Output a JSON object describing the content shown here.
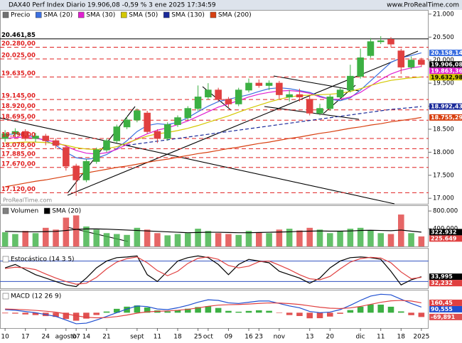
{
  "header": {
    "title": "DAX40 Perf Index Diario 19.906,08 -0,59 % 3 ene 2025 17:34:59",
    "site": "www.ProRealTime.com",
    "watermark": "ProRealTime.com"
  },
  "chart_data": [
    {
      "type": "candlestick",
      "name": "Precio",
      "color": "#707070",
      "up_color": "#3cb043",
      "down_color": "#e04040",
      "categories": [
        "10",
        null,
        "17",
        null,
        "24",
        null,
        "agosto",
        "07",
        "14",
        null,
        "21",
        null,
        null,
        "sept",
        null,
        "11",
        null,
        "18",
        null,
        "25",
        "oct",
        null,
        "09",
        null,
        "16",
        "23",
        null,
        "nov",
        null,
        null,
        "13",
        null,
        "20",
        null,
        null,
        "dic",
        null,
        "11",
        null,
        "18",
        null,
        "2025"
      ],
      "open": [
        18300,
        18400,
        18450,
        18300,
        18350,
        18250,
        18100,
        17700,
        17400,
        17800,
        18050,
        18250,
        18550,
        18700,
        18850,
        18450,
        18300,
        18600,
        18750,
        18950,
        19200,
        19350,
        19150,
        19050,
        19350,
        19500,
        19450,
        19500,
        19200,
        19250,
        19150,
        18850,
        18950,
        19200,
        19350,
        19650,
        20100,
        20400,
        20450,
        20200,
        19850,
        20000
      ],
      "high": [
        18480,
        18520,
        18500,
        18420,
        18400,
        18300,
        18150,
        17750,
        17850,
        18100,
        18300,
        18600,
        18780,
        18950,
        18900,
        18500,
        18650,
        18800,
        19000,
        19450,
        19500,
        19400,
        19200,
        19400,
        19600,
        19580,
        19560,
        19550,
        19350,
        19380,
        19250,
        19050,
        19250,
        19400,
        19900,
        20250,
        20480,
        20520,
        20500,
        20250,
        20080,
        20050
      ],
      "low": [
        18230,
        18330,
        18250,
        18220,
        18150,
        18080,
        17600,
        17050,
        17350,
        17750,
        18000,
        18200,
        18500,
        18650,
        18400,
        18200,
        18250,
        18550,
        18700,
        18900,
        19150,
        19100,
        18980,
        19000,
        19300,
        19400,
        19350,
        19150,
        19100,
        19100,
        18800,
        18800,
        18900,
        19150,
        19300,
        19600,
        20050,
        20350,
        20280,
        19700,
        19800,
        19850
      ],
      "close": [
        18400,
        18450,
        18300,
        18350,
        18250,
        18150,
        17700,
        17400,
        17800,
        18050,
        18250,
        18550,
        18700,
        18900,
        18450,
        18300,
        18600,
        18750,
        18950,
        19200,
        19350,
        19150,
        19050,
        19350,
        19500,
        19450,
        19500,
        19250,
        19250,
        19200,
        18850,
        18950,
        19200,
        19350,
        19650,
        20050,
        20400,
        20420,
        20350,
        19850,
        20000,
        19906.08
      ],
      "last_label": "19.906,08",
      "ylim": [
        16880,
        21090
      ],
      "yticks": [
        {
          "value": 21000,
          "label": "21.000"
        },
        {
          "value": 20500,
          "label": "20.500"
        },
        {
          "value": 20000,
          "label": "20.000"
        },
        {
          "value": 19500,
          "label": "19.500"
        },
        {
          "value": 19000,
          "label": "19.000"
        },
        {
          "value": 18500,
          "label": "18.500"
        },
        {
          "value": 18000,
          "label": "18.000"
        },
        {
          "value": 17500,
          "label": "17.500"
        },
        {
          "value": 17000,
          "label": "17.000"
        }
      ],
      "levels": [
        {
          "value": 20461.85,
          "label": "20.461,85",
          "color": "#000000"
        },
        {
          "value": 20280,
          "label": "20.280,00",
          "color": "#e02020"
        },
        {
          "value": 20025,
          "label": "20.025,00",
          "color": "#e02020"
        },
        {
          "value": 19635,
          "label": "19.635,00",
          "color": "#e02020"
        },
        {
          "value": 19145,
          "label": "19.145,00",
          "color": "#e02020"
        },
        {
          "value": 18920,
          "label": "18.920,00",
          "color": "#e02020"
        },
        {
          "value": 18695,
          "label": "18.695,00",
          "color": "#e02020"
        },
        {
          "value": 18298,
          "label": "18.298,00",
          "color": "#e02020"
        },
        {
          "value": 18078,
          "label": "18.078,00",
          "color": "#e02020"
        },
        {
          "value": 17885,
          "label": "17.885,00",
          "color": "#e02020"
        },
        {
          "value": 17670,
          "label": "17.670,00",
          "color": "#e02020"
        },
        {
          "value": 17120,
          "label": "17.120,00",
          "color": "#e02020"
        }
      ],
      "series": [
        {
          "name": "SMA (20)",
          "color": "#3b6fe0",
          "last_label": "20.158,14",
          "values": [
            18380,
            18400,
            18380,
            18320,
            18250,
            18150,
            18000,
            17880,
            17850,
            17870,
            17950,
            18080,
            18250,
            18450,
            18580,
            18620,
            18600,
            18650,
            18750,
            18880,
            19000,
            19100,
            19150,
            19200,
            19250,
            19320,
            19380,
            19400,
            19380,
            19340,
            19300,
            19220,
            19150,
            19120,
            19180,
            19350,
            19550,
            19750,
            19950,
            20050,
            20100,
            20158.14
          ]
        },
        {
          "name": "SMA (30)",
          "color": "#e020d0",
          "last_label": "19.863,36",
          "values": [
            18300,
            18320,
            18330,
            18300,
            18270,
            18220,
            18130,
            18040,
            17980,
            17960,
            17990,
            18060,
            18170,
            18300,
            18400,
            18480,
            18530,
            18600,
            18680,
            18780,
            18880,
            18980,
            19050,
            19120,
            19200,
            19260,
            19300,
            19330,
            19340,
            19320,
            19280,
            19200,
            19150,
            19150,
            19200,
            19300,
            19440,
            19580,
            19700,
            19780,
            19830,
            19863.36
          ]
        },
        {
          "name": "SMA (50)",
          "color": "#d4c800",
          "last_label": "19.632,98",
          "values": [
            18200,
            18210,
            18220,
            18220,
            18210,
            18190,
            18150,
            18100,
            18070,
            18060,
            18080,
            18120,
            18200,
            18280,
            18350,
            18400,
            18430,
            18470,
            18520,
            18580,
            18650,
            18720,
            18790,
            18870,
            18950,
            19020,
            19090,
            19150,
            19200,
            19230,
            19240,
            19250,
            19260,
            19280,
            19320,
            19380,
            19450,
            19510,
            19560,
            19590,
            19615,
            19632.98
          ]
        },
        {
          "name": "SMA (130)",
          "color": "#1a2a9a",
          "style": "dashed",
          "last_label": "18.992,43",
          "values": [
            null,
            null,
            null,
            null,
            null,
            null,
            null,
            null,
            null,
            null,
            null,
            null,
            18150,
            18180,
            18210,
            18240,
            18270,
            18300,
            18330,
            18360,
            18390,
            18420,
            18450,
            18480,
            18510,
            18540,
            18570,
            18600,
            18630,
            18660,
            18690,
            18720,
            18750,
            18780,
            18810,
            18840,
            18870,
            18900,
            18930,
            18950,
            18970,
            18992.43
          ]
        },
        {
          "name": "SMA (200)",
          "color": "#d84010",
          "last_label": "18.755,29",
          "values": [
            17250,
            17290,
            17330,
            17370,
            17400,
            17440,
            17480,
            17520,
            17550,
            17590,
            17630,
            17670,
            17700,
            17740,
            17780,
            17820,
            17850,
            17890,
            17930,
            17970,
            18000,
            18040,
            18080,
            18110,
            18150,
            18190,
            18220,
            18260,
            18300,
            18330,
            18370,
            18410,
            18440,
            18480,
            18520,
            18550,
            18590,
            18620,
            18660,
            18690,
            18720,
            18755.29
          ]
        }
      ]
    },
    {
      "type": "bar",
      "name": "Volumen",
      "color": "#808080",
      "last_label": "225.649",
      "values": [
        320000,
        280000,
        350000,
        300000,
        420000,
        380000,
        650000,
        700000,
        450000,
        380000,
        300000,
        280000,
        260000,
        420000,
        380000,
        300000,
        250000,
        280000,
        300000,
        400000,
        350000,
        300000,
        280000,
        260000,
        350000,
        320000,
        300000,
        380000,
        400000,
        360000,
        420000,
        380000,
        300000,
        350000,
        400000,
        420000,
        360000,
        300000,
        280000,
        720000,
        300000,
        225649
      ],
      "ylim": [
        0,
        914000
      ],
      "yticks": [
        {
          "value": 800000,
          "label": "800.000"
        },
        {
          "value": 400000,
          "label": "400.000"
        }
      ],
      "series": [
        {
          "name": "SMA (20)",
          "color": "#000000",
          "last_label": "322.932",
          "values": [
            340000,
            335000,
            330000,
            330000,
            335000,
            340000,
            360000,
            385000,
            395000,
            395000,
            390000,
            380000,
            370000,
            360000,
            350000,
            340000,
            330000,
            320000,
            310000,
            315000,
            320000,
            320000,
            315000,
            310000,
            310000,
            315000,
            320000,
            325000,
            330000,
            340000,
            345000,
            350000,
            345000,
            345000,
            350000,
            360000,
            365000,
            360000,
            355000,
            370000,
            345000,
            322932
          ]
        }
      ]
    },
    {
      "type": "line",
      "title": "Estocástico (14 3 5)",
      "ylim": [
        0,
        100
      ],
      "levels": [
        80,
        20
      ],
      "level_color": "#3050c0",
      "series": [
        {
          "color": "#000000",
          "last_label": "33,995",
          "values": [
            60,
            70,
            55,
            40,
            30,
            20,
            10,
            5,
            30,
            60,
            80,
            90,
            92,
            95,
            40,
            20,
            50,
            80,
            90,
            95,
            90,
            70,
            40,
            70,
            85,
            80,
            75,
            50,
            40,
            30,
            15,
            30,
            60,
            80,
            90,
            92,
            90,
            85,
            50,
            10,
            25,
            33.995
          ]
        },
        {
          "color": "#e04040",
          "last_label": "32,232",
          "values": [
            58,
            62,
            60,
            55,
            42,
            30,
            20,
            12,
            15,
            32,
            57,
            77,
            87,
            92,
            75,
            52,
            37,
            50,
            73,
            88,
            92,
            85,
            67,
            60,
            65,
            78,
            80,
            68,
            55,
            40,
            28,
            25,
            35,
            57,
            77,
            87,
            91,
            89,
            75,
            48,
            28,
            32.232
          ]
        }
      ]
    },
    {
      "type": "line",
      "title": "MACD (12 26 9)",
      "ylim": [
        -250,
        350
      ],
      "series": [
        {
          "color": "#3cb043",
          "negative_color": "#e05050",
          "style": "bar",
          "last_label": "-69,891",
          "values": [
            -10,
            -15,
            -28,
            -38,
            -55,
            -68,
            -102,
            -130,
            -96,
            -37,
            19,
            63,
            98,
            118,
            86,
            37,
            21,
            41,
            65,
            92,
            106,
            77,
            30,
            16,
            29,
            39,
            31,
            -7,
            -38,
            -54,
            -91,
            -89,
            -63,
            -18,
            42,
            98,
            134,
            131,
            97,
            21,
            -40,
            -69.891
          ]
        },
        {
          "color": "#1f4fd0",
          "last_label": "90,555",
          "values": [
            50,
            40,
            20,
            0,
            -30,
            -60,
            -120,
            -180,
            -170,
            -120,
            -60,
            0,
            60,
            110,
            100,
            60,
            50,
            80,
            120,
            170,
            210,
            200,
            160,
            150,
            170,
            190,
            190,
            150,
            110,
            80,
            20,
            0,
            10,
            50,
            120,
            200,
            270,
            300,
            290,
            220,
            150,
            90.555
          ]
        },
        {
          "color": "#e04040",
          "last_label": "160,45",
          "values": [
            60,
            55,
            48,
            38,
            25,
            8,
            -18,
            -50,
            -74,
            -83,
            -79,
            -63,
            -38,
            -8,
            14,
            23,
            29,
            39,
            55,
            78,
            104,
            123,
            130,
            134,
            141,
            151,
            159,
            157,
            148,
            134,
            111,
            89,
            73,
            68,
            78,
            102,
            136,
            169,
            193,
            199,
            190,
            160.45
          ]
        }
      ]
    }
  ]
}
